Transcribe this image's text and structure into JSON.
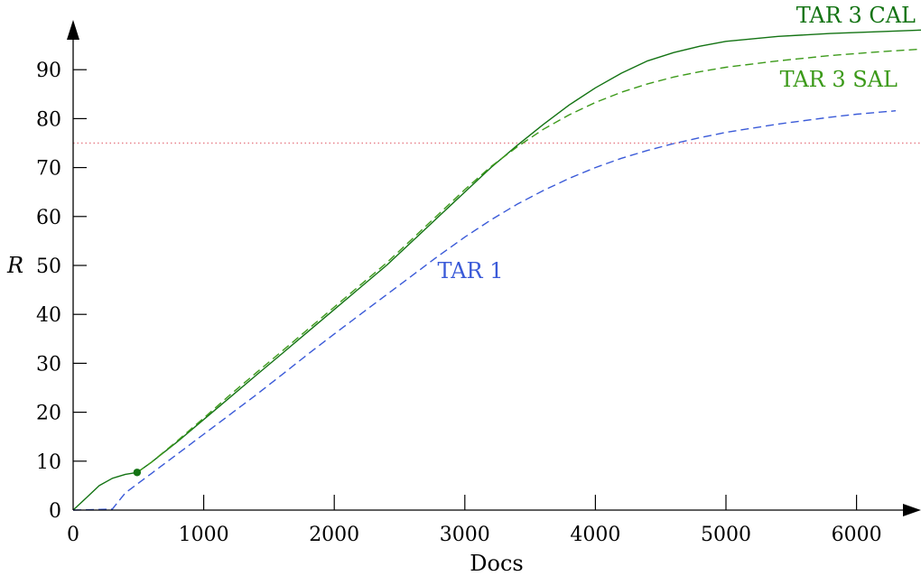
{
  "chart_data": {
    "type": "line",
    "title": "",
    "xlabel": "Docs",
    "ylabel": "R",
    "xlim": [
      0,
      6500
    ],
    "ylim": [
      0,
      100
    ],
    "x_ticks": [
      0,
      1000,
      2000,
      3000,
      4000,
      5000,
      6000
    ],
    "x_tick_labels": [
      "0",
      "1000",
      "2000",
      "3000",
      "4000",
      "5000",
      "6000"
    ],
    "y_ticks": [
      0,
      10,
      20,
      30,
      40,
      50,
      60,
      70,
      80,
      90
    ],
    "y_tick_labels": [
      "0",
      "10",
      "20",
      "30",
      "40",
      "50",
      "60",
      "70",
      "80",
      "90"
    ],
    "grid": false,
    "reference_line": {
      "y": 75,
      "style": "dotted",
      "color": "#e8808a"
    },
    "marker": {
      "x": 490,
      "y": 7.7,
      "series": "TAR 3 CAL",
      "color": "#137313"
    },
    "series": [
      {
        "name": "TAR 3 CAL",
        "color": "#137313",
        "style": "solid",
        "label_position": "top-right",
        "x": [
          0,
          100,
          200,
          300,
          400,
          490,
          600,
          800,
          1000,
          1200,
          1400,
          1600,
          1800,
          2000,
          2200,
          2400,
          2600,
          2800,
          3000,
          3200,
          3400,
          3600,
          3800,
          4000,
          4200,
          4400,
          4600,
          4800,
          5000,
          5400,
          5800,
          6200,
          6500
        ],
        "values": [
          0,
          2.5,
          5,
          6.5,
          7.3,
          7.7,
          9.8,
          14,
          18.5,
          23,
          27.5,
          32,
          36.5,
          41,
          45.5,
          50,
          55,
          60,
          65,
          70,
          74.5,
          78.8,
          82.8,
          86.3,
          89.3,
          91.8,
          93.5,
          94.8,
          95.8,
          96.8,
          97.4,
          97.8,
          98.1
        ]
      },
      {
        "name": "TAR 3 SAL",
        "color": "#3c9a1a",
        "style": "dashed",
        "label_position": "right",
        "x": [
          490,
          600,
          800,
          1000,
          1200,
          1400,
          1600,
          1800,
          2000,
          2200,
          2400,
          2600,
          2800,
          3000,
          3200,
          3400,
          3600,
          3800,
          4000,
          4200,
          4400,
          4600,
          4800,
          5000,
          5400,
          5800,
          6200,
          6500
        ],
        "values": [
          7.7,
          9.8,
          14.2,
          18.8,
          23.5,
          28,
          32.5,
          37,
          41.5,
          46,
          50.5,
          55.5,
          60.5,
          65.5,
          70.2,
          74.2,
          77.8,
          80.8,
          83.3,
          85.4,
          87.1,
          88.5,
          89.6,
          90.5,
          91.8,
          92.9,
          93.7,
          94.2
        ]
      },
      {
        "name": "TAR 1",
        "color": "#3a5ad8",
        "style": "dashed",
        "label_position": "center",
        "x": [
          0,
          300,
          400,
          600,
          800,
          1000,
          1200,
          1400,
          1600,
          1800,
          2000,
          2200,
          2400,
          2600,
          2800,
          3000,
          3200,
          3400,
          3600,
          3800,
          4000,
          4200,
          4400,
          4600,
          4800,
          5000,
          5400,
          5800,
          6000,
          6300
        ],
        "values": [
          0,
          0.2,
          3.5,
          7.5,
          11.5,
          15.5,
          19.5,
          23.5,
          27.7,
          31.9,
          36,
          40,
          44,
          48,
          52,
          55.8,
          59.3,
          62.5,
          65.3,
          67.8,
          70,
          71.9,
          73.5,
          74.9,
          76.1,
          77.2,
          78.9,
          80.3,
          80.9,
          81.6
        ]
      }
    ]
  }
}
